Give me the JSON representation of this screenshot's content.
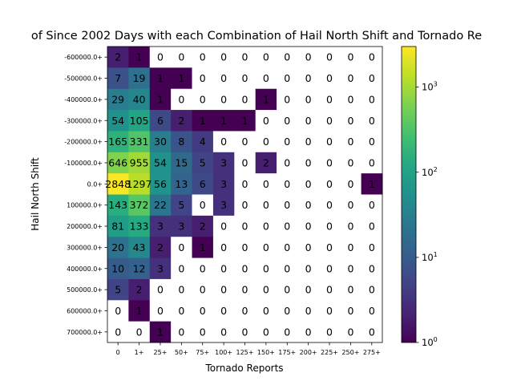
{
  "chart_data": {
    "type": "heatmap",
    "title": "of Since 2002 Days with each Combination of Hail North Shift and Tornado Re",
    "xlabel": "Tornado Reports",
    "ylabel": "Hail North Shift",
    "x_categories": [
      "0",
      "1+",
      "25+",
      "50+",
      "75+",
      "100+",
      "125+",
      "150+",
      "175+",
      "200+",
      "225+",
      "250+",
      "275+"
    ],
    "y_categories": [
      "-600000.0+",
      "-500000.0+",
      "-400000.0+",
      "-300000.0+",
      "-200000.0+",
      "-100000.0+",
      "0.0+",
      "100000.0+",
      "200000.0+",
      "300000.0+",
      "400000.0+",
      "500000.0+",
      "600000.0+",
      "700000.0+"
    ],
    "values": [
      [
        2,
        1,
        0,
        0,
        0,
        0,
        0,
        0,
        0,
        0,
        0,
        0,
        0
      ],
      [
        7,
        19,
        1,
        1,
        0,
        0,
        0,
        0,
        0,
        0,
        0,
        0,
        0
      ],
      [
        29,
        40,
        1,
        0,
        0,
        0,
        0,
        1,
        0,
        0,
        0,
        0,
        0
      ],
      [
        54,
        105,
        6,
        2,
        1,
        1,
        1,
        0,
        0,
        0,
        0,
        0,
        0
      ],
      [
        165,
        331,
        30,
        8,
        4,
        0,
        0,
        0,
        0,
        0,
        0,
        0,
        0
      ],
      [
        646,
        955,
        54,
        15,
        5,
        3,
        0,
        2,
        0,
        0,
        0,
        0,
        0
      ],
      [
        2848,
        1297,
        56,
        13,
        6,
        3,
        0,
        0,
        0,
        0,
        0,
        0,
        1
      ],
      [
        143,
        372,
        22,
        5,
        0,
        3,
        0,
        0,
        0,
        0,
        0,
        0,
        0
      ],
      [
        81,
        133,
        3,
        3,
        2,
        0,
        0,
        0,
        0,
        0,
        0,
        0,
        0
      ],
      [
        20,
        43,
        2,
        0,
        1,
        0,
        0,
        0,
        0,
        0,
        0,
        0,
        0
      ],
      [
        10,
        12,
        3,
        0,
        0,
        0,
        0,
        0,
        0,
        0,
        0,
        0,
        0
      ],
      [
        5,
        2,
        0,
        0,
        0,
        0,
        0,
        0,
        0,
        0,
        0,
        0,
        0
      ],
      [
        0,
        1,
        0,
        0,
        0,
        0,
        0,
        0,
        0,
        0,
        0,
        0,
        0
      ],
      [
        0,
        0,
        1,
        0,
        0,
        0,
        0,
        0,
        0,
        0,
        0,
        0,
        0
      ]
    ],
    "value_labels": [
      [
        "2",
        "1",
        "0",
        "0",
        "0",
        "0",
        "0",
        "0",
        "0",
        "0",
        "0",
        "0",
        "0"
      ],
      [
        "7",
        "19",
        "1",
        "1",
        "0",
        "0",
        "0",
        "0",
        "0",
        "0",
        "0",
        "0",
        "0"
      ],
      [
        "29",
        "40",
        "1",
        "0",
        "0",
        "0",
        "0",
        "1",
        "0",
        "0",
        "0",
        "0",
        "0"
      ],
      [
        "54",
        "105",
        "6",
        "2",
        "1",
        "1",
        "1",
        "0",
        "0",
        "0",
        "0",
        "0",
        "0"
      ],
      [
        "165",
        "331",
        "30",
        "8",
        "4",
        "0",
        "0",
        "0",
        "0",
        "0",
        "0",
        "0",
        "0"
      ],
      [
        "646",
        "955",
        "54",
        "15",
        "5",
        "3",
        "0",
        "2",
        "0",
        "0",
        "0",
        "0",
        "0"
      ],
      [
        "2848",
        "1297",
        "56",
        "13",
        "6",
        "3",
        "0",
        "0",
        "0",
        "0",
        "0",
        "0",
        "1"
      ],
      [
        "143",
        "372",
        "22",
        "5",
        "0",
        "3",
        "0",
        "0",
        "0",
        "0",
        "0",
        "0",
        "0"
      ],
      [
        "81",
        "133",
        "3",
        "3",
        "2",
        "0",
        "0",
        "0",
        "0",
        "0",
        "0",
        "0",
        "0"
      ],
      [
        "20",
        "43",
        "2",
        "0",
        "1",
        "0",
        "0",
        "0",
        "0",
        "0",
        "0",
        "0",
        "0"
      ],
      [
        "10",
        "12",
        "3",
        "0",
        "0",
        "0",
        "0",
        "0",
        "0",
        "0",
        "0",
        "0",
        "0"
      ],
      [
        "5",
        "2",
        "0",
        "0",
        "0",
        "0",
        "0",
        "0",
        "0",
        "0",
        "0",
        "0",
        "0"
      ],
      [
        "0",
        "1",
        "0",
        "0",
        "0",
        "0",
        "0",
        "0",
        "0",
        "0",
        "0",
        "0",
        "0"
      ],
      [
        "0",
        "0",
        "1",
        "0",
        "0",
        "0",
        "0",
        "0",
        "0",
        "0",
        "0",
        "0",
        "0"
      ]
    ],
    "color_scale": "log",
    "colormap": "viridis",
    "zero_color": "#ffffff",
    "colorbar": {
      "range": [
        1,
        3000
      ],
      "ticks": [
        {
          "value": 1,
          "base": "10",
          "exp": "0"
        },
        {
          "value": 10,
          "base": "10",
          "exp": "1"
        },
        {
          "value": 100,
          "base": "10",
          "exp": "2"
        },
        {
          "value": 1000,
          "base": "10",
          "exp": "3"
        }
      ]
    },
    "grid": false
  }
}
